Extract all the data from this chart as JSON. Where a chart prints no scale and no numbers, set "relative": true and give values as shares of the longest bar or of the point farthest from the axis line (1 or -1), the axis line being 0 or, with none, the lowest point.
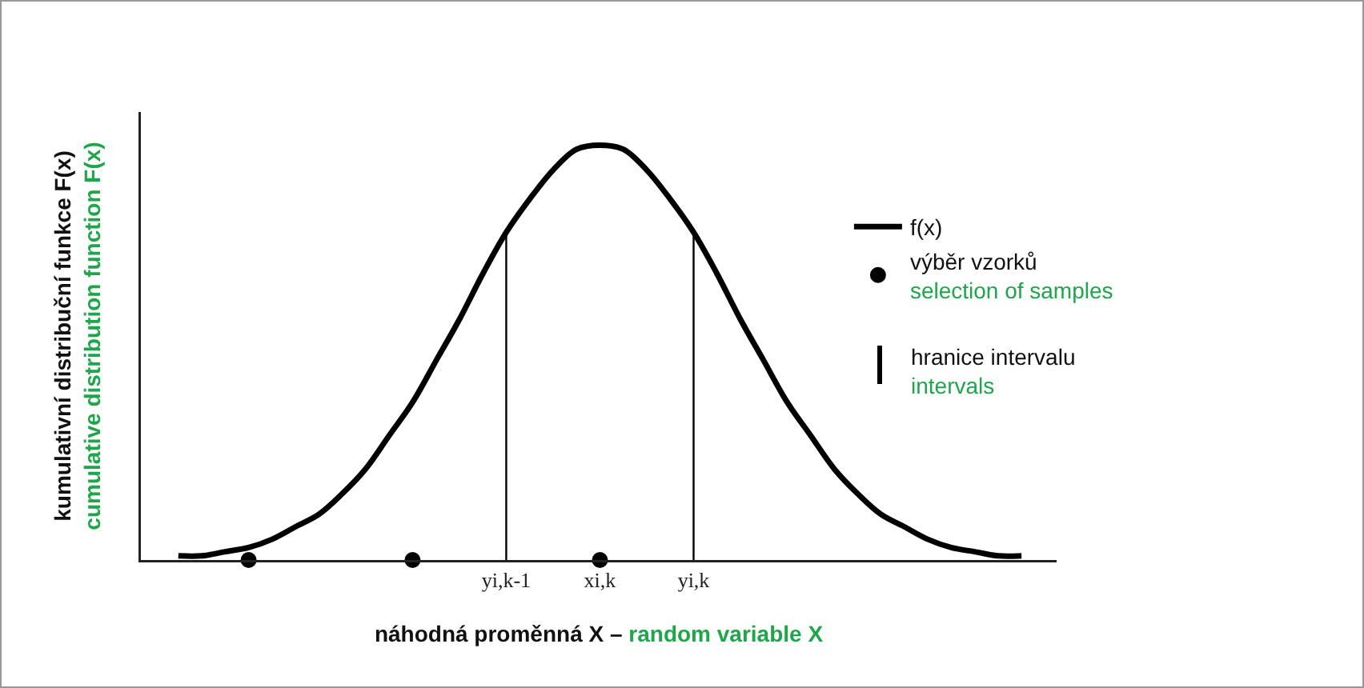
{
  "chart_data": {
    "type": "line",
    "relative": true,
    "xlabel": "náhodná proměnná X – random variable X",
    "ylabel": "kumulativní distribuční funkce F(x)\ncumulative distribution function F(x)",
    "categories": [
      null,
      null,
      null,
      null,
      null,
      null,
      null,
      null,
      null,
      null,
      null,
      null,
      null,
      null,
      "yi,k-1",
      null,
      null,
      null,
      "xi,k",
      null,
      null,
      null,
      "yi,k",
      null,
      null,
      null,
      null,
      null,
      null,
      null,
      null,
      null,
      null,
      null,
      null,
      null,
      null
    ],
    "series": [
      {
        "name": "f(x)",
        "type": "line",
        "color": "#000000",
        "marker": "none",
        "values": [
          0.01,
          0.01,
          0.02,
          0.03,
          0.05,
          0.08,
          0.11,
          0.16,
          0.22,
          0.3,
          0.38,
          0.48,
          0.58,
          0.69,
          0.79,
          0.87,
          0.94,
          0.99,
          1,
          0.99,
          0.94,
          0.87,
          0.79,
          0.69,
          0.58,
          0.48,
          0.38,
          0.3,
          0.22,
          0.16,
          0.11,
          0.08,
          0.05,
          0.03,
          0.02,
          0.01,
          0.01
        ]
      },
      {
        "name": "výběr vzorků\nselection of samples",
        "type": "scatter",
        "color": "#000000",
        "marker": "circle",
        "values": [
          null,
          null,
          null,
          0,
          null,
          null,
          null,
          null,
          null,
          null,
          0,
          null,
          null,
          null,
          null,
          null,
          null,
          null,
          0,
          null,
          null,
          null,
          null,
          null,
          null,
          null,
          null,
          null,
          null,
          null,
          null,
          null,
          null,
          null,
          null,
          null,
          null
        ]
      }
    ],
    "ref_lines": [
      {
        "axis": "x",
        "value": "yi,k-1",
        "color": "#000000"
      },
      {
        "axis": "x",
        "value": "yi,k",
        "color": "#000000"
      }
    ],
    "annotations": [
      "hranice intervalu\nintervals"
    ],
    "legend": "right",
    "grid": false
  }
}
